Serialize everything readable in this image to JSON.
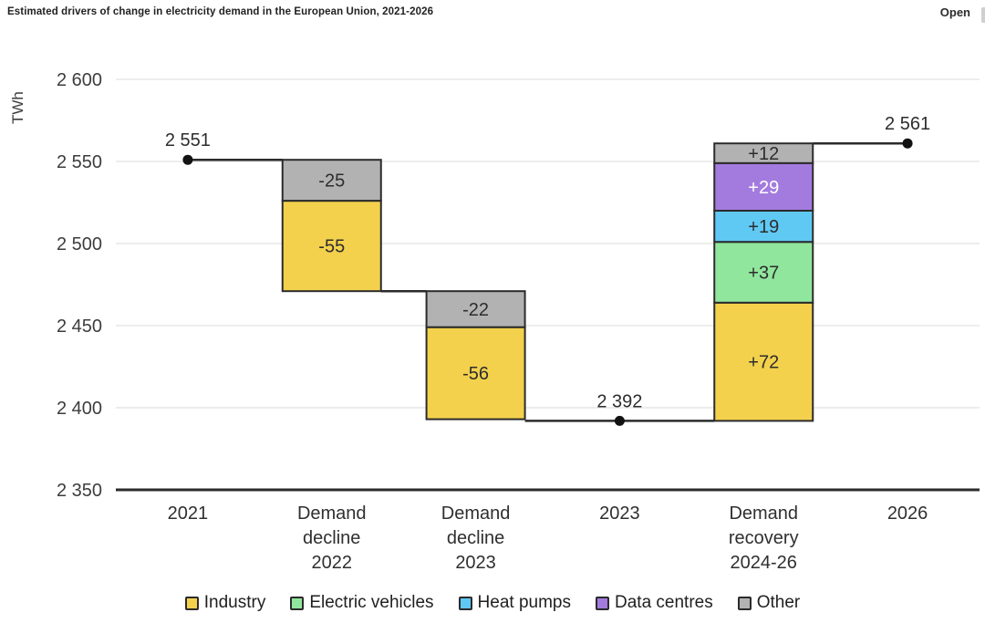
{
  "header": {
    "title": "Estimated drivers of change in electricity demand in the European Union, 2021-2026",
    "open_label": "Open"
  },
  "chart_data": {
    "type": "waterfall",
    "title": "Estimated drivers of change in electricity demand in the European Union, 2021-2026",
    "unit": "TWh",
    "ylim": [
      2350,
      2600
    ],
    "grid": "horizontal",
    "legend_position": "bottom",
    "yticks": [
      {
        "value": 2600,
        "label": "2 600"
      },
      {
        "value": 2550,
        "label": "2 550"
      },
      {
        "value": 2500,
        "label": "2 500"
      },
      {
        "value": 2450,
        "label": "2 450"
      },
      {
        "value": 2400,
        "label": "2 400"
      },
      {
        "value": 2350,
        "label": "2 350"
      }
    ],
    "colors": {
      "Industry": "#F3D14C",
      "Electric vehicles": "#90E69D",
      "Heat pumps": "#5FC9F4",
      "Data centres": "#A37BDF",
      "Other": "#B3B2B2"
    },
    "line_color": "#2B2B2B",
    "grid_color": "#E2E2E2",
    "legend": [
      "Industry",
      "Electric vehicles",
      "Heat pumps",
      "Data centres",
      "Other"
    ],
    "columns": [
      {
        "type": "point",
        "label_lines": [
          "2021"
        ],
        "value": 2551,
        "value_label": "2 551"
      },
      {
        "type": "bar",
        "label_lines": [
          "Demand",
          "decline",
          "2022"
        ],
        "segments": [
          {
            "series": "Other",
            "value": -25,
            "label": "-25"
          },
          {
            "series": "Industry",
            "value": -55,
            "label": "-55"
          }
        ]
      },
      {
        "type": "bar",
        "label_lines": [
          "Demand",
          "decline",
          "2023"
        ],
        "segments": [
          {
            "series": "Other",
            "value": -22,
            "label": "-22"
          },
          {
            "series": "Industry",
            "value": -56,
            "label": "-56"
          }
        ]
      },
      {
        "type": "point",
        "label_lines": [
          "2023"
        ],
        "value": 2392,
        "value_label": "2 392"
      },
      {
        "type": "bar",
        "label_lines": [
          "Demand",
          "recovery",
          "2024-26"
        ],
        "segments": [
          {
            "series": "Industry",
            "value": 72,
            "label": "+72"
          },
          {
            "series": "Electric vehicles",
            "value": 37,
            "label": "+37"
          },
          {
            "series": "Heat pumps",
            "value": 19,
            "label": "+19"
          },
          {
            "series": "Data centres",
            "value": 29,
            "label": "+29",
            "label_color": "#FFFFFF"
          },
          {
            "series": "Other",
            "value": 12,
            "label": "+12"
          }
        ]
      },
      {
        "type": "point",
        "label_lines": [
          "2026"
        ],
        "value": 2561,
        "value_label": "2 561"
      }
    ]
  }
}
